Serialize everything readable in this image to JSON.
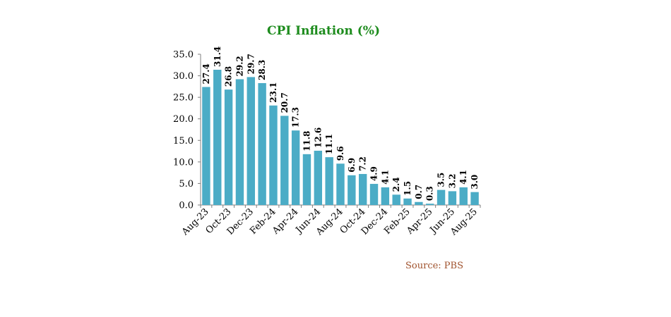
{
  "chart_data": {
    "type": "bar",
    "title": "CPI Inflation (%)",
    "xlabel": "",
    "ylabel": "",
    "categories": [
      "Aug-23",
      "Sep-23",
      "Oct-23",
      "Nov-23",
      "Dec-23",
      "Jan-24",
      "Feb-24",
      "Mar-24",
      "Apr-24",
      "May-24",
      "Jun-24",
      "Jul-24",
      "Aug-24",
      "Sep-24",
      "Oct-24",
      "Nov-24",
      "Dec-24",
      "Jan-25",
      "Feb-25",
      "Mar-25",
      "Apr-25",
      "May-25",
      "Jun-25",
      "Jul-25",
      "Aug-25"
    ],
    "tick_labels": [
      "Aug-23",
      "Oct-23",
      "Dec-23",
      "Feb-24",
      "Apr-24",
      "Jun-24",
      "Aug-24",
      "Oct-24",
      "Dec-24",
      "Feb-25",
      "Apr-25",
      "Jun-25",
      "Aug-25"
    ],
    "values": [
      27.4,
      31.4,
      26.8,
      29.2,
      29.7,
      28.3,
      23.1,
      20.7,
      17.3,
      11.8,
      12.6,
      11.1,
      9.6,
      6.9,
      7.2,
      4.9,
      4.1,
      2.4,
      1.5,
      0.7,
      0.3,
      3.5,
      3.2,
      4.1,
      3.0
    ],
    "data_labels": [
      "27.4",
      "31.4",
      "26.8",
      "29.2",
      "29.7",
      "28.3",
      "23.1",
      "20.7",
      "17.3",
      "11.8",
      "12.6",
      "11.1",
      "9.6",
      "6.9",
      "7.2",
      "4.9",
      "4.1",
      "2.4",
      "1.5",
      "0.7",
      "0.3",
      "3.5",
      "3.2",
      "4.1",
      "3.0"
    ],
    "y_ticks": [
      "0.0",
      "5.0",
      "10.0",
      "15.0",
      "20.0",
      "25.0",
      "30.0",
      "35.0"
    ],
    "ylim": [
      0,
      35
    ],
    "grid": false,
    "legend": "none",
    "bar_color": "#4bacc6",
    "title_color": "#1e8c1e"
  },
  "source": "Source: PBS",
  "source_color": "#a0522d"
}
